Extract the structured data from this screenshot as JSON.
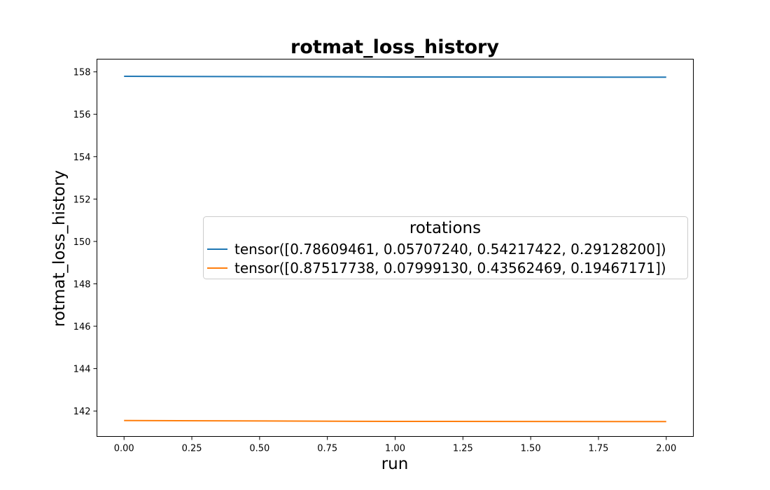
{
  "chart_data": {
    "type": "line",
    "title": "rotmat_loss_history",
    "xlabel": "run",
    "ylabel": "rotmat_loss_history",
    "x": [
      0,
      1,
      2
    ],
    "xlim": [
      -0.1,
      2.1
    ],
    "ylim": [
      140.8,
      158.6
    ],
    "xticks": [
      0.0,
      0.25,
      0.5,
      0.75,
      1.0,
      1.25,
      1.5,
      1.75,
      2.0
    ],
    "xtick_labels": [
      "0.00",
      "0.25",
      "0.50",
      "0.75",
      "1.00",
      "1.25",
      "1.50",
      "1.75",
      "2.00"
    ],
    "yticks": [
      142,
      144,
      146,
      148,
      150,
      152,
      154,
      156,
      158
    ],
    "ytick_labels": [
      "142",
      "144",
      "146",
      "148",
      "150",
      "152",
      "154",
      "156",
      "158"
    ],
    "grid": false,
    "legend": {
      "title": "rotations",
      "placement": "center-right"
    },
    "series": [
      {
        "name": "tensor([0.78609461, 0.05707240, 0.54217422, 0.29128200])",
        "color": "#1f77b4",
        "values": [
          157.79,
          157.76,
          157.75
        ]
      },
      {
        "name": "tensor([0.87517738, 0.07999130, 0.43562469, 0.19467171])",
        "color": "#ff7f0e",
        "values": [
          141.55,
          141.51,
          141.5
        ]
      }
    ]
  }
}
